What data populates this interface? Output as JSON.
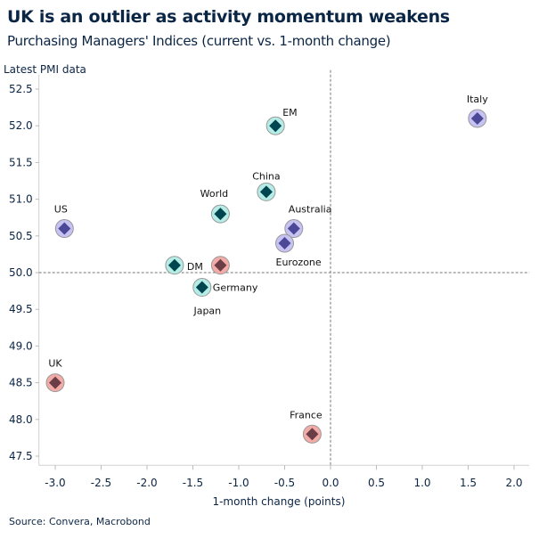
{
  "header": {
    "title": "UK is an outlier as activity momentum weakens",
    "subtitle": "Purchasing Managers' Indices (current vs. 1-month change)"
  },
  "footer": {
    "source": "Source: Convera, Macrobond"
  },
  "chart_data": {
    "type": "scatter",
    "title": "UK is an outlier as activity momentum weakens",
    "subtitle": "Purchasing Managers' Indices (current vs. 1-month change)",
    "xlabel": "1-month change (points)",
    "ylabel": "Latest PMI data",
    "xlim": [
      -3.1,
      2.05
    ],
    "ylim": [
      47.4,
      52.6
    ],
    "xticks": [
      "-3.0",
      "-2.5",
      "-2.0",
      "-1.5",
      "-1.0",
      "-0.5",
      "0.0",
      "0.5",
      "1.0",
      "1.5",
      "2.0"
    ],
    "yticks": [
      "47.5",
      "48.0",
      "48.5",
      "49.0",
      "49.5",
      "50.0",
      "50.5",
      "51.0",
      "51.5",
      "52.0",
      "52.5"
    ],
    "reference_lines": {
      "x": 0.0,
      "y": 50.0,
      "style": "dashed"
    },
    "grid": false,
    "colors": {
      "teal": {
        "fill": "#b5ede6",
        "marker": "#004550"
      },
      "purple": {
        "fill": "#c6c2f2",
        "marker": "#4b4898"
      },
      "red": {
        "fill": "#f2aba6",
        "marker": "#6b3d47"
      }
    },
    "points": [
      {
        "label": "Italy",
        "x": 1.6,
        "y": 52.1,
        "group": "purple"
      },
      {
        "label": "EM",
        "x": -0.6,
        "y": 52.0,
        "group": "teal"
      },
      {
        "label": "China",
        "x": -0.7,
        "y": 51.1,
        "group": "teal"
      },
      {
        "label": "World",
        "x": -1.2,
        "y": 50.8,
        "group": "teal"
      },
      {
        "label": "US",
        "x": -2.9,
        "y": 50.6,
        "group": "purple"
      },
      {
        "label": "Australia",
        "x": -0.4,
        "y": 50.6,
        "group": "purple"
      },
      {
        "label": "Eurozone",
        "x": -0.5,
        "y": 50.4,
        "group": "purple"
      },
      {
        "label": "DM",
        "x": -1.7,
        "y": 50.1,
        "group": "teal"
      },
      {
        "label": "Germany",
        "x": -1.2,
        "y": 50.1,
        "group": "red"
      },
      {
        "label": "Japan",
        "x": -1.4,
        "y": 49.8,
        "group": "teal"
      },
      {
        "label": "UK",
        "x": -3.0,
        "y": 48.5,
        "group": "red"
      },
      {
        "label": "France",
        "x": -0.2,
        "y": 47.8,
        "group": "red"
      }
    ]
  }
}
